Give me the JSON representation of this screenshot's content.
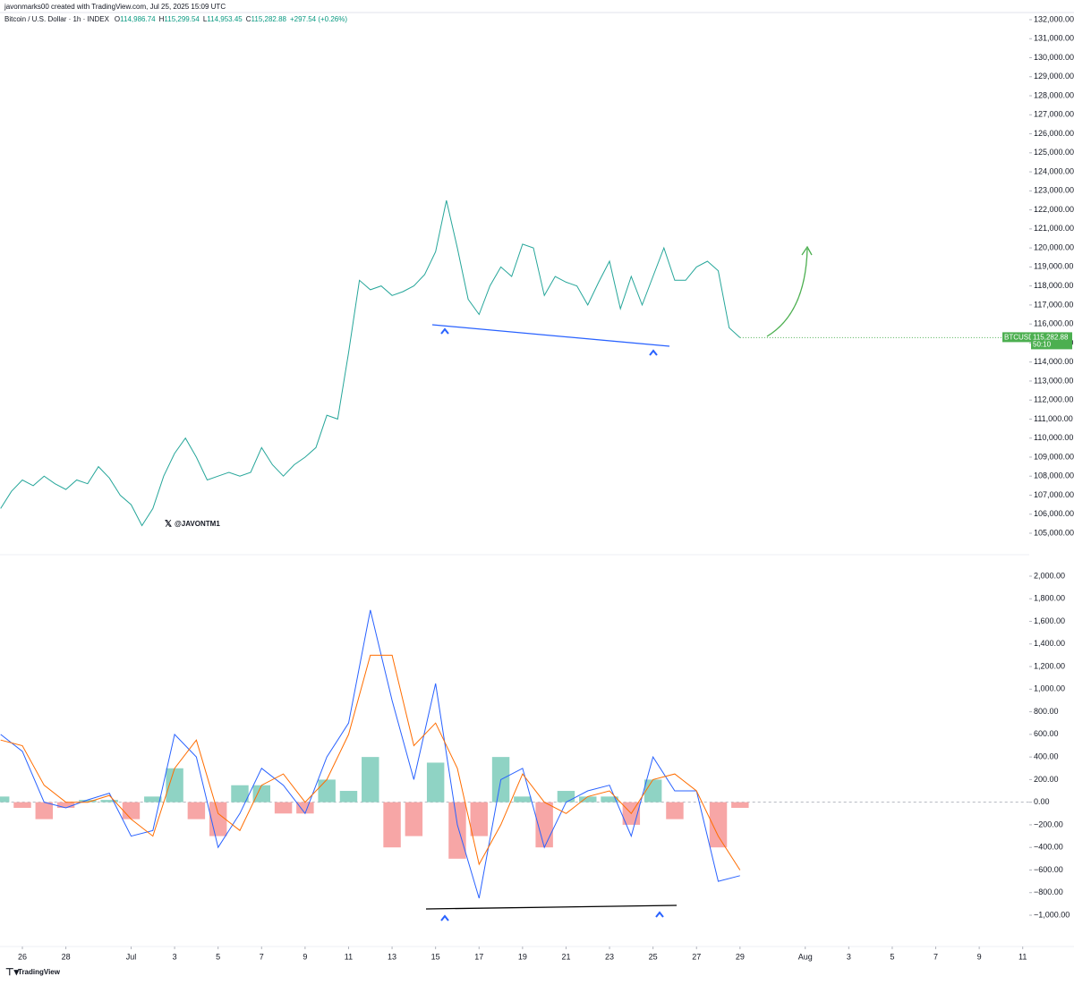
{
  "header": {
    "credit": "javonmarks00 created with TradingView.com, Jul 25, 2025 15:09 UTC",
    "symbol_line": "Bitcoin / U.S. Dollar · 1h · INDEX",
    "ohlc": [
      {
        "label": "O",
        "value": "114,986.74"
      },
      {
        "label": "H",
        "value": "115,299.54"
      },
      {
        "label": "L",
        "value": "114,953.45"
      },
      {
        "label": "C",
        "value": "115,282.88"
      }
    ],
    "change": "+297.54 (+0.26%)",
    "watermark": "@JAVONTM1",
    "brand": "TradingView"
  },
  "chart_data": [
    {
      "type": "line",
      "color": "#26a69a",
      "x": [
        0,
        0.5,
        1,
        1.5,
        2,
        2.5,
        3,
        3.5,
        4,
        4.5,
        5,
        5.5,
        6,
        6.5,
        7,
        7.5,
        8,
        8.5,
        9,
        9.5,
        10,
        10.5,
        11,
        11.5,
        12,
        12.5,
        13,
        13.5,
        14,
        14.5,
        15,
        15.5,
        16,
        16.5,
        17,
        17.5,
        18,
        18.5,
        19,
        19.5,
        20,
        20.5,
        21,
        21.5,
        22,
        22.5,
        23,
        23.5,
        24,
        24.5,
        25,
        25.5,
        26,
        26.5,
        27,
        27.5,
        28,
        28.5,
        29,
        29.5,
        30,
        30.5,
        31,
        31.5,
        32,
        32.5,
        33,
        33.5,
        34
      ],
      "values": [
        106300,
        107200,
        107800,
        107500,
        108000,
        107600,
        107300,
        107800,
        107600,
        108500,
        107900,
        107000,
        106500,
        105400,
        106300,
        108000,
        109200,
        110000,
        109000,
        107800,
        108000,
        108200,
        108000,
        108200,
        109500,
        108600,
        108000,
        108600,
        109000,
        109500,
        111200,
        111000,
        114500,
        118300,
        117800,
        118000,
        117500,
        117700,
        118000,
        118600,
        119800,
        122500,
        120000,
        117300,
        116500,
        118000,
        119000,
        118500,
        120200,
        120000,
        117500,
        118500,
        118200,
        118000,
        117000,
        118200,
        119300,
        116800,
        118500,
        117000,
        118500,
        120000,
        118300,
        118300,
        119000,
        119300,
        118800,
        115800,
        115282.88
      ],
      "ticker": "BTCUSD",
      "last_label": "115,282.88",
      "countdown": "50:10",
      "last_color": "#4caf50",
      "xlim": [
        0,
        47.3
      ],
      "ylim": [
        105000,
        132000
      ],
      "yticks": [
        {
          "value": 105000,
          "label": "105,000.00"
        },
        {
          "value": 106000,
          "label": "106,000.00"
        },
        {
          "value": 107000,
          "label": "107,000.00"
        },
        {
          "value": 108000,
          "label": "108,000.00"
        },
        {
          "value": 109000,
          "label": "109,000.00"
        },
        {
          "value": 110000,
          "label": "110,000.00"
        },
        {
          "value": 111000,
          "label": "111,000.00"
        },
        {
          "value": 112000,
          "label": "112,000.00"
        },
        {
          "value": 113000,
          "label": "113,000.00"
        },
        {
          "value": 114000,
          "label": "114,000.00"
        },
        {
          "value": 115000,
          "label": "115,000.00"
        },
        {
          "value": 116000,
          "label": "116,000.00"
        },
        {
          "value": 117000,
          "label": "117,000.00"
        },
        {
          "value": 118000,
          "label": "118,000.00"
        },
        {
          "value": 119000,
          "label": "119,000.00"
        },
        {
          "value": 120000,
          "label": "120,000.00"
        },
        {
          "value": 121000,
          "label": "121,000.00"
        },
        {
          "value": 122000,
          "label": "122,000.00"
        },
        {
          "value": 123000,
          "label": "123,000.00"
        },
        {
          "value": 124000,
          "label": "124,000.00"
        },
        {
          "value": 125000,
          "label": "125,000.00"
        },
        {
          "value": 126000,
          "label": "126,000.00"
        },
        {
          "value": 127000,
          "label": "127,000.00"
        },
        {
          "value": 128000,
          "label": "128,000.00"
        },
        {
          "value": 129000,
          "label": "129,000.00"
        },
        {
          "value": 130000,
          "label": "130,000.00"
        },
        {
          "value": 131000,
          "label": "131,000.00"
        },
        {
          "value": 132000,
          "label": "132,000.00"
        }
      ]
    },
    {
      "type": "macd",
      "x": [
        0,
        1,
        2,
        3,
        4,
        5,
        6,
        7,
        8,
        9,
        10,
        11,
        12,
        13,
        14,
        15,
        16,
        17,
        18,
        19,
        20,
        21,
        22,
        23,
        24,
        25,
        26,
        27,
        28,
        29,
        30,
        31,
        32,
        33,
        34
      ],
      "series": [
        {
          "color": "#2962ff",
          "values": [
            600,
            450,
            0,
            -50,
            20,
            80,
            -300,
            -250,
            600,
            400,
            -400,
            -100,
            300,
            150,
            -100,
            400,
            700,
            1700,
            900,
            200,
            1050,
            -200,
            -850,
            200,
            300,
            -400,
            0,
            100,
            150,
            -300,
            400,
            100,
            100,
            -700,
            -650
          ]
        },
        {
          "color": "#ff6d00",
          "values": [
            550,
            500,
            150,
            0,
            0,
            60,
            -150,
            -300,
            300,
            550,
            -100,
            -250,
            150,
            250,
            0,
            200,
            600,
            1300,
            1300,
            500,
            700,
            300,
            -550,
            -200,
            250,
            0,
            -100,
            50,
            100,
            -100,
            200,
            250,
            100,
            -300,
            -600
          ]
        }
      ],
      "histogram": {
        "pos_color": "#8fd3c4",
        "neg_color": "#f7a6a6",
        "values": [
          50,
          -50,
          -150,
          -50,
          20,
          20,
          -150,
          50,
          300,
          -150,
          -300,
          150,
          150,
          -100,
          -100,
          200,
          100,
          400,
          -400,
          -300,
          350,
          -500,
          -300,
          400,
          50,
          -400,
          100,
          50,
          50,
          -200,
          200,
          -150,
          0,
          -400,
          -50
        ]
      },
      "xlim": [
        0,
        47.3
      ],
      "ylim": [
        -1000,
        2000
      ],
      "yticks": [
        {
          "value": 2000,
          "label": "2,000.00"
        },
        {
          "value": 1800,
          "label": "1,800.00"
        },
        {
          "value": 1600,
          "label": "1,600.00"
        },
        {
          "value": 1400,
          "label": "1,400.00"
        },
        {
          "value": 1200,
          "label": "1,200.00"
        },
        {
          "value": 1000,
          "label": "1,000.00"
        },
        {
          "value": 800,
          "label": "800.00"
        },
        {
          "value": 600,
          "label": "600.00"
        },
        {
          "value": 400,
          "label": "400.00"
        },
        {
          "value": 200,
          "label": "200.00"
        },
        {
          "value": 0,
          "label": "0.00"
        },
        {
          "value": -200,
          "label": "−200.00"
        },
        {
          "value": -400,
          "label": "−400.00"
        },
        {
          "value": -600,
          "label": "−600.00"
        },
        {
          "value": -800,
          "label": "−800.00"
        },
        {
          "value": -1000,
          "label": "−1,000.00"
        }
      ],
      "xticks": [
        {
          "value": 1,
          "label": "26"
        },
        {
          "value": 3,
          "label": "28"
        },
        {
          "value": 6,
          "label": "Jul"
        },
        {
          "value": 8,
          "label": "3"
        },
        {
          "value": 10,
          "label": "5"
        },
        {
          "value": 12,
          "label": "7"
        },
        {
          "value": 14,
          "label": "9"
        },
        {
          "value": 16,
          "label": "11"
        },
        {
          "value": 18,
          "label": "13"
        },
        {
          "value": 20,
          "label": "15"
        },
        {
          "value": 22,
          "label": "17"
        },
        {
          "value": 24,
          "label": "19"
        },
        {
          "value": 26,
          "label": "21"
        },
        {
          "value": 28,
          "label": "23"
        },
        {
          "value": 30,
          "label": "25"
        },
        {
          "value": 32,
          "label": "27"
        },
        {
          "value": 34,
          "label": "29"
        },
        {
          "value": 37,
          "label": "Aug"
        },
        {
          "value": 39,
          "label": "3"
        },
        {
          "value": 41,
          "label": "5"
        },
        {
          "value": 43,
          "label": "7"
        },
        {
          "value": 45,
          "label": "9"
        },
        {
          "value": 47,
          "label": "11"
        }
      ]
    }
  ]
}
